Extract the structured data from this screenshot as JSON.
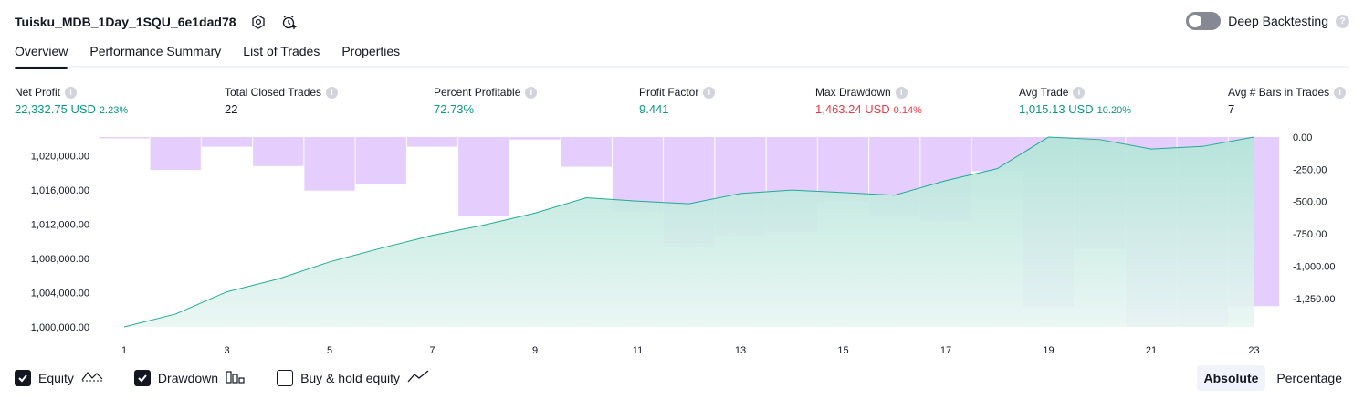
{
  "header": {
    "strategy_name": "Tuisku_MDB_1Day_1SQU_6e1dad78",
    "deep_backtesting_label": "Deep Backtesting",
    "help_glyph": "?",
    "deep_backtesting_on": false
  },
  "tabs": [
    {
      "label": "Overview",
      "active": true
    },
    {
      "label": "Performance Summary",
      "active": false
    },
    {
      "label": "List of Trades",
      "active": false
    },
    {
      "label": "Properties",
      "active": false
    }
  ],
  "stats": {
    "net_profit": {
      "label": "Net Profit",
      "value": "22,332.75 USD",
      "pct": "2.23%",
      "color": "green"
    },
    "total_closed_trades": {
      "label": "Total Closed Trades",
      "value": "22",
      "color": "dark"
    },
    "percent_profitable": {
      "label": "Percent Profitable",
      "value": "72.73%",
      "color": "green"
    },
    "profit_factor": {
      "label": "Profit Factor",
      "value": "9.441",
      "color": "green"
    },
    "max_drawdown": {
      "label": "Max Drawdown",
      "value": "1,463.24 USD",
      "pct": "0.14%",
      "color": "red"
    },
    "avg_trade": {
      "label": "Avg Trade",
      "value": "1,015.13 USD",
      "pct": "10.20%",
      "color": "green"
    },
    "avg_bars": {
      "label": "Avg # Bars in Trades",
      "value": "7",
      "color": "dark"
    }
  },
  "info_glyph": "i",
  "colors": {
    "green": "#089981",
    "red": "#f23645",
    "equity_line": "#22ab94",
    "drawdown_fill": "#e1c4fd",
    "equity_fill_top": "#bce7dd"
  },
  "chart_data": {
    "type": "line",
    "x": [
      1,
      2,
      3,
      4,
      5,
      6,
      7,
      8,
      9,
      10,
      11,
      12,
      13,
      14,
      15,
      16,
      17,
      18,
      19,
      20,
      21,
      22,
      23
    ],
    "x_tick_labels": [
      "1",
      "3",
      "5",
      "7",
      "9",
      "11",
      "13",
      "15",
      "17",
      "19",
      "21",
      "23"
    ],
    "left_axis": {
      "ticks": [
        "1,000,000.00",
        "1,004,000.00",
        "1,008,000.00",
        "1,012,000.00",
        "1,016,000.00",
        "1,020,000.00"
      ],
      "ylim": [
        1000000,
        1022200
      ]
    },
    "right_axis": {
      "ticks": [
        "0.00",
        "-250.00",
        "-500.00",
        "-750.00",
        "-1,000.00",
        "-1,250.00"
      ],
      "ylim": [
        -1470,
        0
      ]
    },
    "series": [
      {
        "name": "Equity",
        "axis": "left",
        "style": "area-line",
        "values": [
          1000000,
          1001500,
          1004100,
          1005600,
          1007600,
          1009200,
          1010700,
          1011900,
          1013300,
          1015100,
          1014700,
          1014400,
          1015600,
          1016000,
          1015700,
          1015400,
          1017100,
          1018500,
          1022200,
          1021900,
          1020800,
          1021100,
          1022200
        ]
      },
      {
        "name": "Drawdown",
        "axis": "right",
        "style": "bar",
        "values": [
          -10,
          -255,
          -75,
          -225,
          -415,
          -365,
          -75,
          -610,
          -20,
          -230,
          -575,
          -855,
          -765,
          -735,
          -505,
          -610,
          -650,
          -265,
          -1310,
          -870,
          -1463,
          -1463,
          -1310
        ]
      }
    ],
    "grid": false
  },
  "legend": {
    "items": [
      {
        "label": "Equity",
        "checked": true,
        "icon": "equity-icon"
      },
      {
        "label": "Drawdown",
        "checked": true,
        "icon": "drawdown-icon"
      },
      {
        "label": "Buy & hold equity",
        "checked": false,
        "icon": "buy-hold-icon"
      }
    ]
  },
  "modes": {
    "absolute": "Absolute",
    "percentage": "Percentage",
    "active": "absolute"
  }
}
